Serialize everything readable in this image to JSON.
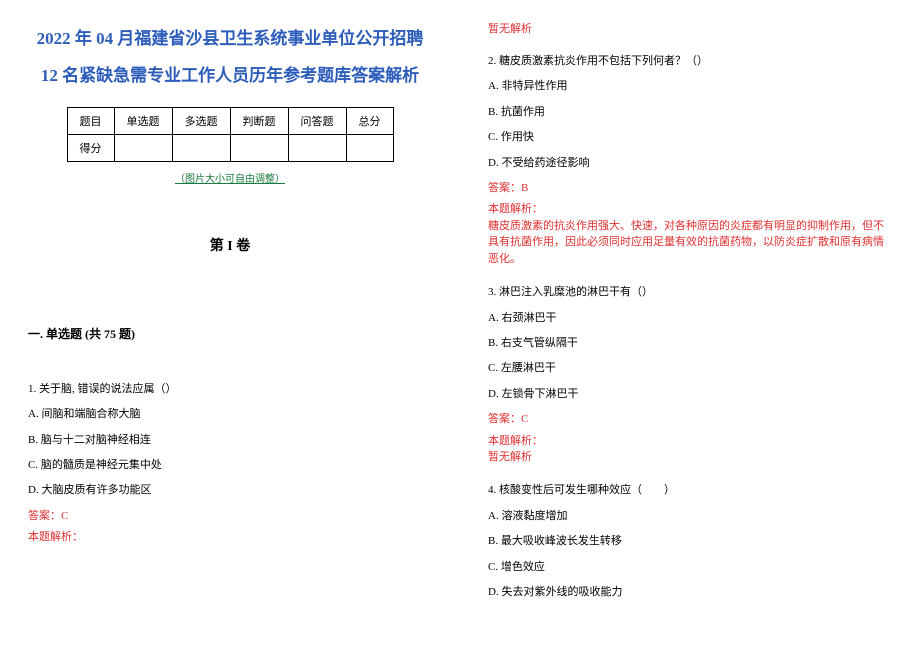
{
  "title_main": "2022 年 04 月福建省沙县卫生系统事业单位公开招聘 12 名紧缺急需专业工作人员历年参考题库答案解析",
  "table": {
    "row1": [
      "题目",
      "单选题",
      "多选题",
      "判断题",
      "问答题",
      "总分"
    ],
    "row2": [
      "得分",
      "",
      "",
      "",
      "",
      ""
    ]
  },
  "adjust_note": "（图片大小可自由调整）",
  "volume_title": "第 I 卷",
  "section_title": "一. 单选题 (共 75 题)",
  "q1": {
    "stem": "1. 关于脑, 错误的说法应属（）",
    "a": "A. 间脑和端脑合称大脑",
    "b": "B. 脑与十二对脑神经相连",
    "c": "C. 脑的髓质是神经元集中处",
    "d": "D. 大脑皮质有许多功能区",
    "answer": "答案：C",
    "analysis_label": "本题解析："
  },
  "no_analysis": "暂无解析",
  "q2": {
    "stem": "2. 糖皮质激素抗炎作用不包括下列何者？（）",
    "a": "A. 非特异性作用",
    "b": "B. 抗菌作用",
    "c": "C. 作用快",
    "d": "D. 不受给药途径影响",
    "answer": "答案：B",
    "analysis_label": "本题解析：",
    "analysis_text": "糖皮质激素的抗炎作用强大、快速，对各种原因的炎症都有明显的抑制作用，但不具有抗菌作用，因此必须同时应用足量有效的抗菌药物，以防炎症扩散和原有病情恶化。"
  },
  "q3": {
    "stem": "3. 淋巴注入乳糜池的淋巴干有（）",
    "a": "A. 右颈淋巴干",
    "b": "B. 右支气管纵隔干",
    "c": "C. 左腰淋巴干",
    "d": "D. 左锁骨下淋巴干",
    "answer": "答案：C",
    "analysis_label": "本题解析：",
    "analysis_empty": "暂无解析"
  },
  "q4": {
    "stem": "4. 核酸变性后可发生哪种效应（　　）",
    "a": "A. 溶液黏度增加",
    "b": "B. 最大吸收峰波长发生转移",
    "c": "C. 增色效应",
    "d": "D. 失去对紫外线的吸收能力"
  },
  "colors": {
    "title": "#2d5dba",
    "answer": "#e03030",
    "note": "#1b7a3e",
    "text": "#000000",
    "bg": "#ffffff"
  }
}
